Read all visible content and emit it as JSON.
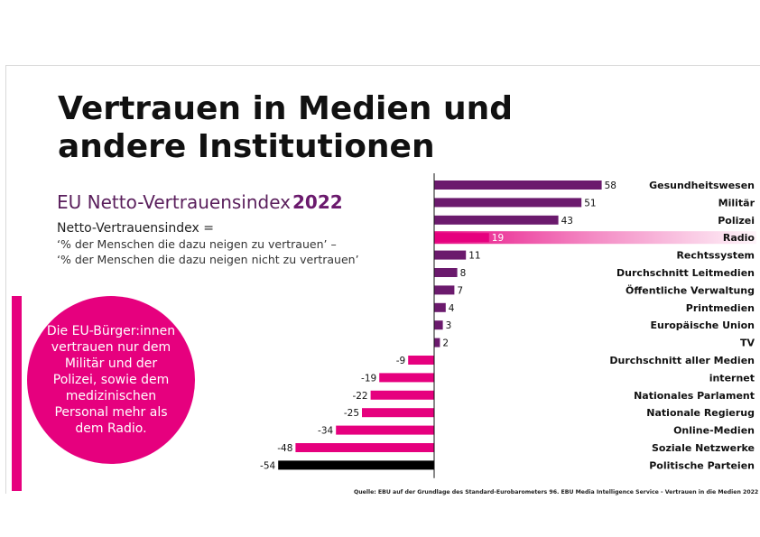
{
  "header": {
    "title_line1": "Vertrauen in Medien und",
    "title_line2": "andere Institutionen",
    "subtitle": "EU Netto-Vertrauensindex",
    "subtitle_year": "2022"
  },
  "formula": {
    "heading": "Netto-Vertrauensindex =",
    "line1": "‘% der Menschen die dazu neigen zu vertrauen’ –",
    "line2": "‘% der Menschen die dazu neigen nicht zu vertrauen’"
  },
  "callout": {
    "text": "Die EU-Bürger:innen vertrauen nur dem Militär und der Polizei, sowie dem medizinischen Personal mehr als dem Radio."
  },
  "source": "Quelle: EBU auf der Grundlage des Standard-Eurobarometers 96. EBU Media Intelligence Service - Vertrauen in die Medien 2022",
  "colors": {
    "positive": "#6b1a6d",
    "negative": "#e6007e",
    "highlight": "#e6007e",
    "lowest": "#000000",
    "accent": "#e6007e"
  },
  "chart_data": {
    "type": "bar",
    "orientation": "horizontal",
    "title": "EU Netto-Vertrauensindex 2022",
    "categories": [
      "Gesundheitswesen",
      "Militär",
      "Polizei",
      "Radio",
      "Rechtssystem",
      "Durchschnitt Leitmedien",
      "Öffentliche Verwaltung",
      "Printmedien",
      "Europäische Union",
      "TV",
      "Durchschnitt aller Medien",
      "internet",
      "Nationales Parlament",
      "Nationale Regierug",
      "Online-Medien",
      "Soziale Netzwerke",
      "Politische Parteien"
    ],
    "values": [
      58,
      51,
      43,
      19,
      11,
      8,
      7,
      4,
      3,
      2,
      -9,
      -19,
      -22,
      -25,
      -34,
      -48,
      -54
    ],
    "labels": [
      "58",
      "51",
      "43",
      "19",
      "11",
      "8",
      "7",
      "4",
      "3",
      "2",
      "-9",
      "-19",
      "-22",
      "-25",
      "-34",
      "-48",
      "-54"
    ],
    "highlight_category": "Radio",
    "xlim": [
      -54,
      58
    ],
    "grid": false,
    "legend": "none"
  }
}
